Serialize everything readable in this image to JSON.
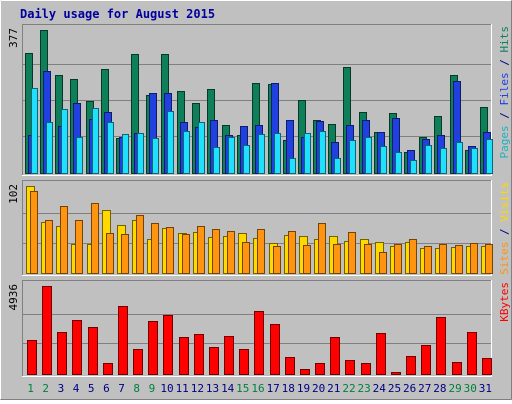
{
  "chart_data": {
    "type": "bar",
    "title": "Daily usage for August 2015",
    "categories": [
      "1",
      "2",
      "3",
      "4",
      "5",
      "6",
      "7",
      "8",
      "9",
      "10",
      "11",
      "12",
      "13",
      "14",
      "15",
      "16",
      "17",
      "18",
      "19",
      "20",
      "21",
      "22",
      "23",
      "24",
      "25",
      "26",
      "27",
      "28",
      "29",
      "30",
      "31"
    ],
    "weekend_days": [
      "1",
      "2",
      "8",
      "9",
      "15",
      "16",
      "22",
      "23",
      "29",
      "30"
    ],
    "colors": {
      "hits": "#0f7f5a",
      "files": "#2040e0",
      "pages": "#20e0ff",
      "visits": "#ffd800",
      "sites": "#ff9410",
      "kbytes": "#ff0000",
      "title": "#0000a0",
      "weekday_label": "#000080",
      "weekend_label": "#008040"
    },
    "panels": [
      {
        "name": "hits-files-pages",
        "max_label": "377",
        "ylim": [
          0,
          377
        ],
        "legend": [
          {
            "text": "Pages",
            "color": "#20b0c0"
          },
          {
            "text": " / ",
            "color": "#000080"
          },
          {
            "text": "Files",
            "color": "#2040e0"
          },
          {
            "text": " / ",
            "color": "#000080"
          },
          {
            "text": "Hits",
            "color": "#0f7f5a"
          }
        ],
        "series": [
          {
            "name": "Hits",
            "key": "hits",
            "values": [
              317,
              377,
              258,
              250,
              192,
              275,
              95,
              315,
              208,
              315,
              218,
              186,
              222,
              129,
              102,
              239,
              235,
              90,
              195,
              141,
              130,
              280,
              163,
              111,
              160,
              58,
              97,
              153,
              259,
              63,
              175
            ]
          },
          {
            "name": "Files",
            "key": "files",
            "values": [
              102,
              269,
              125,
              187,
              145,
              163,
              96,
              108,
              213,
              213,
              135,
              123,
              141,
              102,
              126,
              128,
              237,
              142,
              98,
              140,
              83,
              127,
              142,
              111,
              146,
              62,
              91,
              103,
              244,
              73,
              111
            ]
          },
          {
            "name": "Pages",
            "key": "pages",
            "values": [
              225,
              135,
              171,
              96,
              174,
              137,
              104,
              108,
              93,
              165,
              113,
              135,
              71,
              98,
              77,
              105,
              107,
              41,
              108,
              113,
              41,
              89,
              96,
              74,
              57,
              37,
              75,
              68,
              84,
              67,
              91
            ]
          }
        ]
      },
      {
        "name": "visits-sites",
        "max_label": "102",
        "ylim": [
          0,
          102
        ],
        "legend": [
          {
            "text": "Sites",
            "color": "#ff9410"
          },
          {
            "text": " / ",
            "color": "#000080"
          },
          {
            "text": "Visits",
            "color": "#ffd800"
          }
        ],
        "series": [
          {
            "name": "Visits",
            "key": "visits",
            "values": [
              102,
              60,
              56,
              35,
              35,
              74,
              57,
              63,
              40,
              53,
              47,
              49,
              43,
              44,
              47,
              42,
              36,
              45,
              44,
              41,
              44,
              38,
              40,
              37,
              33,
              37,
              30,
              30,
              31,
              33,
              33
            ]
          },
          {
            "name": "Sites",
            "key": "sites",
            "values": [
              96,
              63,
              79,
              63,
              82,
              48,
              46,
              68,
              59,
              55,
              46,
              56,
              52,
              50,
              37,
              52,
              33,
              50,
              34,
              59,
              35,
              49,
              35,
              26,
              35,
              40,
              33,
              35,
              34,
              36,
              35
            ]
          }
        ]
      },
      {
        "name": "kbytes",
        "max_label": "4936",
        "ylim": [
          0,
          4936
        ],
        "legend": [
          {
            "text": "KBytes",
            "color": "#ff0000"
          }
        ],
        "series": [
          {
            "name": "KBytes",
            "key": "kbytes",
            "values": [
              1960,
              4936,
              2360,
              3040,
              2670,
              670,
              3800,
              1440,
              3020,
              3310,
              2110,
              2280,
              1580,
              2180,
              1430,
              3540,
              2830,
              990,
              350,
              660,
              2100,
              820,
              640,
              2340,
              190,
              1040,
              1660,
              3220,
              720,
              2370,
              950
            ]
          }
        ]
      }
    ]
  }
}
